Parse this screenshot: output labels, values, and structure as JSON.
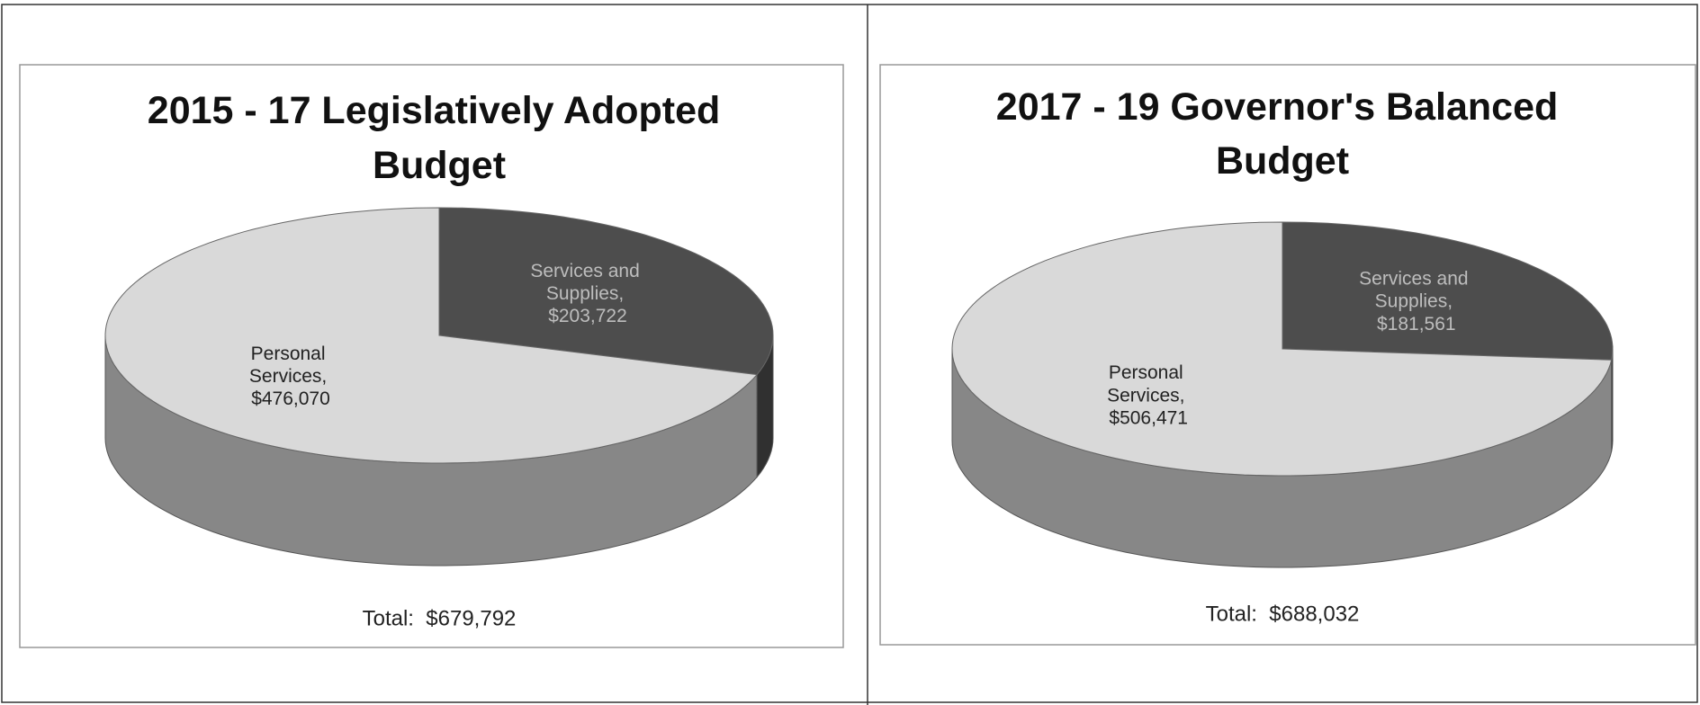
{
  "chart_data": [
    {
      "type": "pie3d",
      "title": "2015 - 17 Legislatively Adopted Budget",
      "categories": [
        "Services and Supplies",
        "Personal Services"
      ],
      "values": [
        203722,
        476070
      ],
      "value_labels": [
        "Services and Supplies, $203,722",
        "Personal Services, $476,070"
      ],
      "colors": [
        "#4d4d4d",
        "#d9d9d9"
      ],
      "annotation": "Total:  $679,792"
    },
    {
      "type": "pie3d",
      "title": "2017 - 19 Governor's Balanced Budget",
      "categories": [
        "Services and Supplies",
        "Personal Services"
      ],
      "values": [
        181561,
        506471
      ],
      "value_labels": [
        "Services and Supplies, $181,561",
        "Personal Services, $506,471"
      ],
      "colors": [
        "#4d4d4d",
        "#d9d9d9"
      ],
      "annotation": "Total:  $688,032"
    }
  ]
}
